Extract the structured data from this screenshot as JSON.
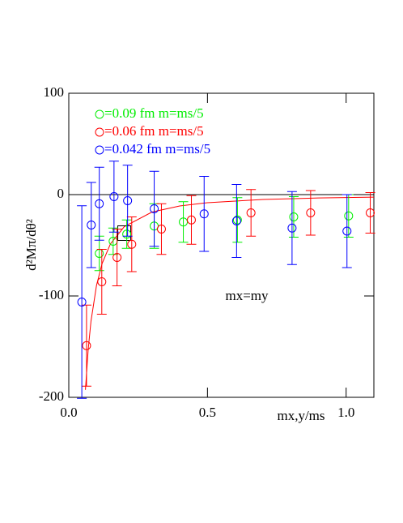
{
  "chart_data": {
    "type": "scatter",
    "ylabel": "d²Mπ/dθ²",
    "xlabel": "mx,y/ms",
    "annotation": "mx=my",
    "xlim": [
      0,
      1.1
    ],
    "ylim": [
      -200,
      100
    ],
    "xticks": [
      {
        "value": 0,
        "label": "0.0"
      },
      0.5,
      {
        "value": 1,
        "label": "1.0"
      }
    ],
    "yticks": [
      -200,
      -100,
      0,
      100
    ],
    "hline": 0,
    "series": [
      {
        "name": "=0.09 fm  m=ms/5",
        "color": "#00ee00",
        "x": [
          0.11,
          0.16,
          0.209,
          0.308,
          0.413,
          0.608,
          0.811,
          1.009
        ],
        "values": [
          -58,
          -46,
          -39,
          -31,
          -27,
          -25,
          -22,
          -21
        ],
        "errors": [
          17,
          13,
          14,
          22,
          20,
          22,
          20,
          21
        ]
      },
      {
        "name": "=0.06 fm  m=ms/5",
        "color": "#ff0000",
        "x": [
          0.064,
          0.119,
          0.174,
          0.227,
          0.334,
          0.442,
          0.657,
          0.872,
          1.087
        ],
        "values": [
          -149,
          -86,
          -62,
          -49,
          -34,
          -25,
          -18,
          -18,
          -18
        ],
        "errors": [
          40,
          32,
          28,
          27,
          25,
          24,
          23,
          22,
          20
        ]
      },
      {
        "name": "=0.042 fm  m=ms/5",
        "color": "#0000ff",
        "x": [
          0.047,
          0.081,
          0.11,
          0.163,
          0.212,
          0.308,
          0.488,
          0.605,
          0.805,
          1.003
        ],
        "values": [
          -106,
          -30,
          -9,
          -2,
          -6,
          -14,
          -19,
          -26,
          -33,
          -36
        ],
        "errors": [
          95,
          42,
          36,
          35,
          35,
          37,
          37,
          36,
          36,
          36
        ]
      }
    ],
    "curve": {
      "color": "#ff0000",
      "x": [
        0.06,
        0.07,
        0.08,
        0.1,
        0.12,
        0.15,
        0.2,
        0.3,
        0.4,
        0.5,
        0.7,
        0.9,
        1.1
      ],
      "values": [
        -192.6,
        -152.8,
        -125,
        -89.5,
        -68.1,
        -48.7,
        -31.6,
        -17.2,
        -11.2,
        -8.0,
        -4.8,
        -3.3,
        -2.5
      ]
    },
    "marker": {
      "x": 0.2,
      "y": -38
    }
  }
}
